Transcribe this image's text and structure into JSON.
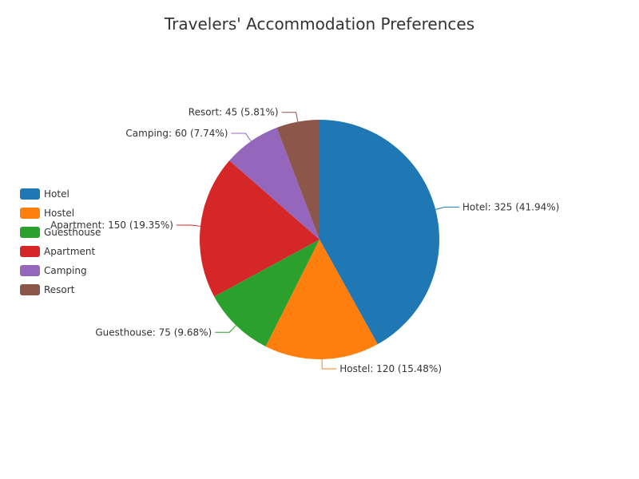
{
  "chart_data": {
    "type": "pie",
    "title": "Travelers' Accommodation Preferences",
    "legend_position": "left",
    "slices": [
      {
        "name": "Hotel",
        "value": 325,
        "percent": "41.94%",
        "color": "#1f77b4"
      },
      {
        "name": "Hostel",
        "value": 120,
        "percent": "15.48%",
        "color": "#ff7f0e"
      },
      {
        "name": "Guesthouse",
        "value": 75,
        "percent": "9.68%",
        "color": "#2ca02c"
      },
      {
        "name": "Apartment",
        "value": 150,
        "percent": "19.35%",
        "color": "#d62728"
      },
      {
        "name": "Camping",
        "value": 60,
        "percent": "7.74%",
        "color": "#9467bd"
      },
      {
        "name": "Resort",
        "value": 45,
        "percent": "5.81%",
        "color": "#8c564b"
      }
    ]
  }
}
